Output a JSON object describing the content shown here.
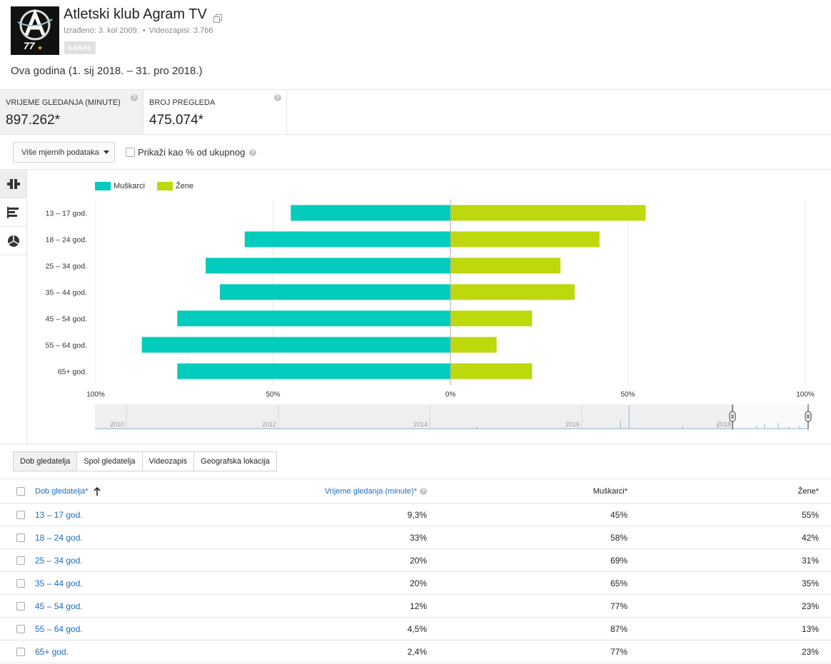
{
  "channel": {
    "name": "Atletski klub Agram TV",
    "created": "Izrađeno: 3. kol 2009.",
    "videos": "Videozapisi: 3.766",
    "badge": "KANAL",
    "avatar_text": "77"
  },
  "date_range": "Ova godina (1. sij 2018. – 31. pro 2018.)",
  "metrics": [
    {
      "label": "VRIJEME GLEDANJA (MINUTE)",
      "value": "897.262*"
    },
    {
      "label": "BROJ PREGLEDA",
      "value": "475.074*"
    }
  ],
  "controls": {
    "more_metrics": "Više mjernih podataka",
    "show_percent": "Prikaži kao % od ukupnog"
  },
  "colors": {
    "male": "#03ccbc",
    "female": "#bdd80c",
    "link": "#1d6fb8"
  },
  "chart_data": {
    "type": "bar",
    "orientation": "horizontal-diverging",
    "categories": [
      "13 – 17 god.",
      "18 – 24 god.",
      "25 – 34 god.",
      "35 – 44 god.",
      "45 – 54 god.",
      "55 – 64 god.",
      "65+ god."
    ],
    "series": [
      {
        "name": "Muškarci",
        "values": [
          45,
          58,
          69,
          65,
          77,
          87,
          77
        ]
      },
      {
        "name": "Žene",
        "values": [
          55,
          42,
          31,
          35,
          23,
          13,
          23
        ]
      }
    ],
    "x_ticks": [
      "100%",
      "50%",
      "0%",
      "50%",
      "100%"
    ],
    "xlim": [
      -100,
      100
    ],
    "grid": true,
    "legend": "top-left"
  },
  "timeline": {
    "years": [
      "2010",
      "2012",
      "2014",
      "2016",
      "2018"
    ]
  },
  "tabs": [
    "Dob gledatelja",
    "Spol gledatelja",
    "Videozapis",
    "Geografska lokacija"
  ],
  "table": {
    "headers": [
      "Dob gledatelja*",
      "Vrijeme gledanja (minute)*",
      "Muškarci*",
      "Žene*"
    ],
    "rows": [
      [
        "13 – 17 god.",
        "9,3%",
        "45%",
        "55%"
      ],
      [
        "18 – 24 god.",
        "33%",
        "58%",
        "42%"
      ],
      [
        "25 – 34 god.",
        "20%",
        "69%",
        "31%"
      ],
      [
        "35 – 44 god.",
        "20%",
        "65%",
        "35%"
      ],
      [
        "45 – 54 god.",
        "12%",
        "77%",
        "23%"
      ],
      [
        "55 – 64 god.",
        "4,5%",
        "87%",
        "13%"
      ],
      [
        "65+ god.",
        "2,4%",
        "77%",
        "23%"
      ]
    ]
  }
}
